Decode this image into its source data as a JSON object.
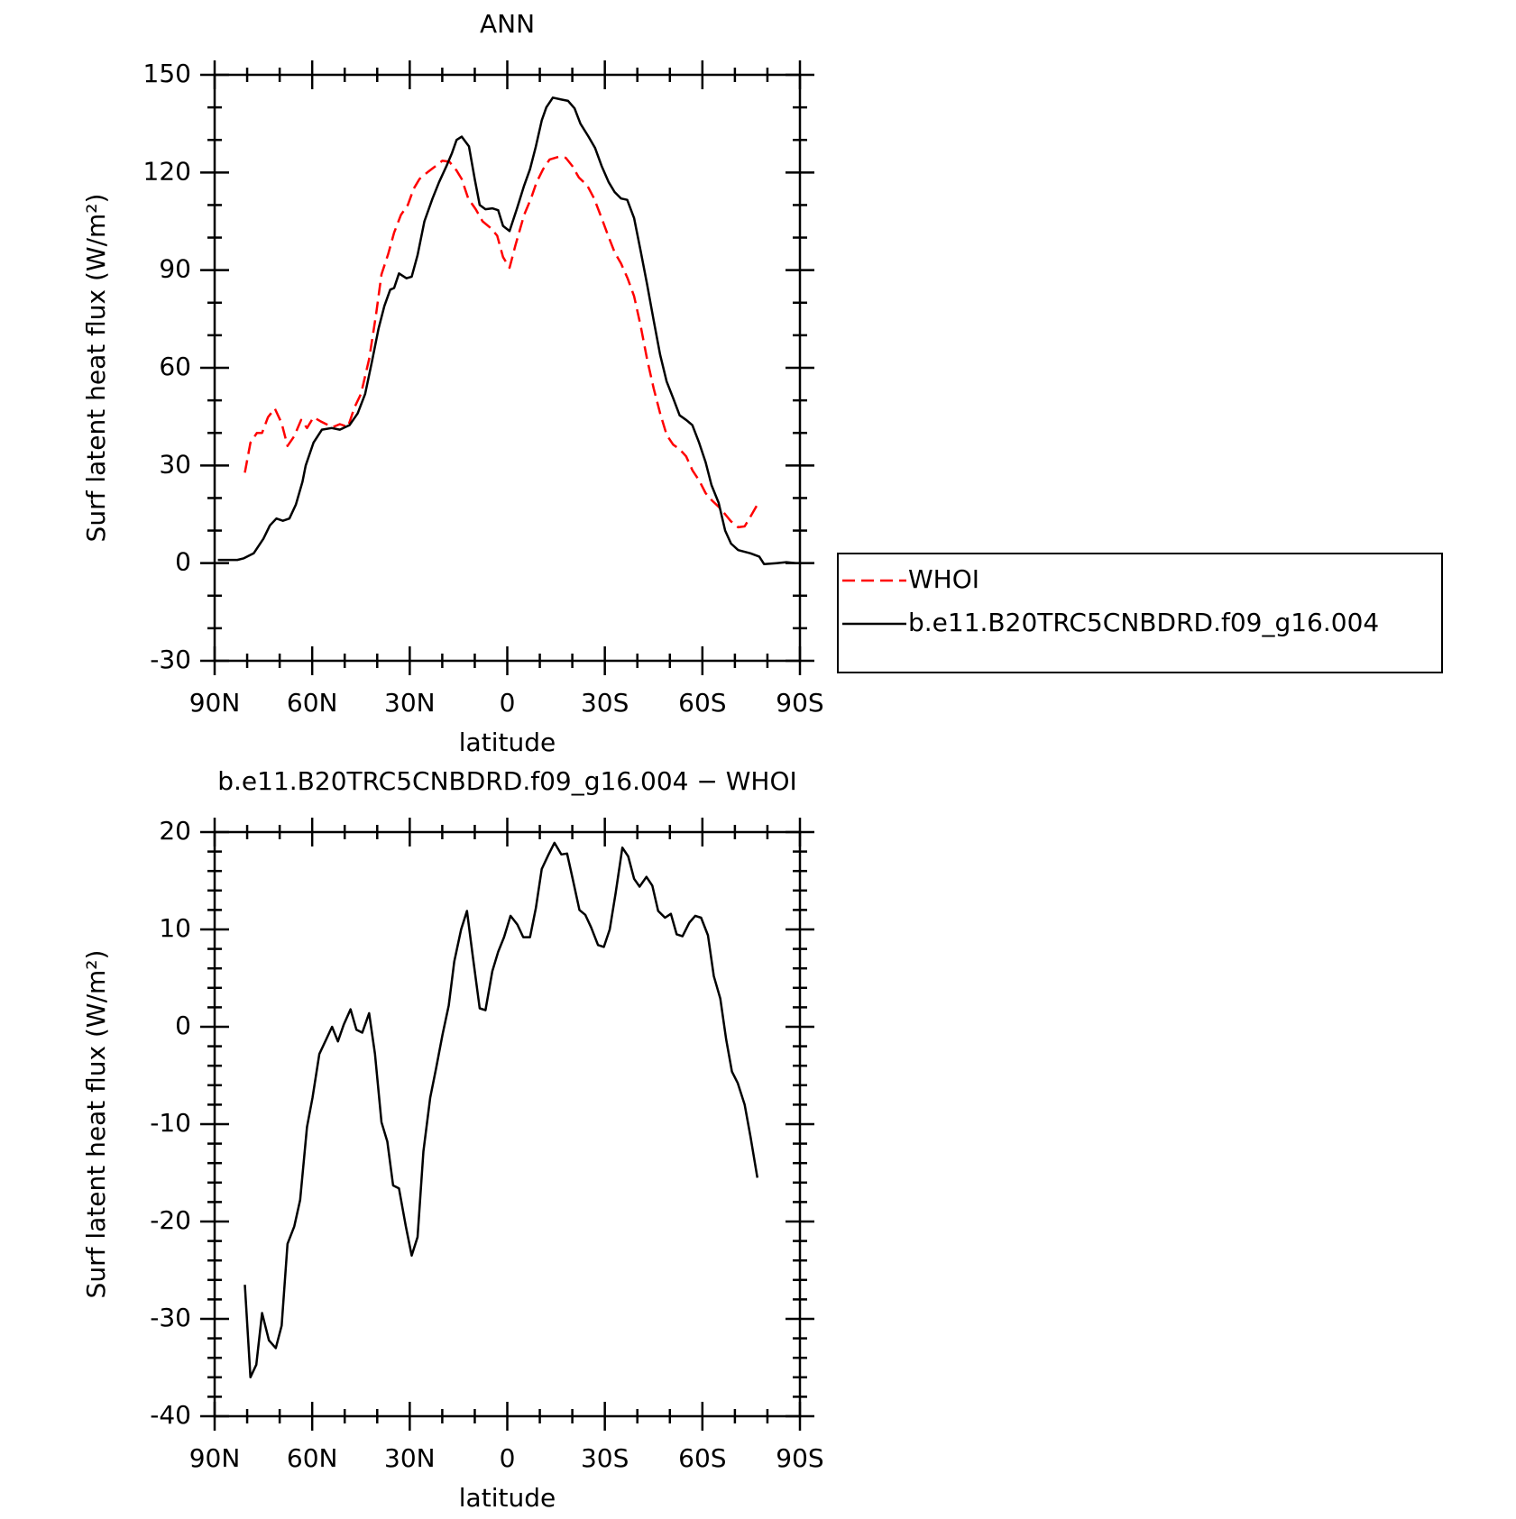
{
  "chart_data": [
    {
      "type": "line",
      "title": "ANN",
      "xlabel": "latitude",
      "ylabel": "Surf latent heat flux (W/m²)",
      "xlim": [
        90,
        -90
      ],
      "xticks": [
        {
          "value": 90,
          "label": "90N"
        },
        {
          "value": 60,
          "label": "60N"
        },
        {
          "value": 30,
          "label": "30N"
        },
        0,
        {
          "value": -30,
          "label": "30S"
        },
        {
          "value": -60,
          "label": "60S"
        },
        {
          "value": -90,
          "label": "90S"
        }
      ],
      "ylim": [
        -30,
        150
      ],
      "yticks": [
        -30,
        0,
        30,
        60,
        90,
        120,
        150
      ],
      "legend": "right",
      "series": [
        {
          "name": "WHOI",
          "color": "#ff0000",
          "dash": true,
          "x": [
            80.7,
            79,
            77,
            75.4,
            73.6,
            71.5,
            69.4,
            67.6,
            65.5,
            63.4,
            61.6,
            59.6,
            57.5,
            55.7,
            53.6,
            51.5,
            49,
            47,
            45,
            42.5,
            40.4,
            38.7,
            36.6,
            34.8,
            32.7,
            30.6,
            28.8,
            27,
            24.6,
            22,
            20,
            17.8,
            15.6,
            14,
            12,
            9.7,
            7.6,
            5.2,
            3.1,
            1.3,
            -0.7,
            -2.5,
            -5.2,
            -7.3,
            -9,
            -11,
            -13,
            -15.7,
            -18,
            -20,
            -22,
            -24.6,
            -26.7,
            -29,
            -31,
            -33,
            -35,
            -37,
            -39,
            -41,
            -43,
            -45,
            -47,
            -49,
            -51,
            -53,
            -55,
            -57,
            -59,
            -61,
            -62.8,
            -65,
            -67,
            -68.8,
            -71,
            -73,
            -74.8,
            -76.9
          ],
          "values": [
            27.8,
            37,
            40,
            40,
            44.8,
            47.5,
            43,
            36,
            39,
            44,
            41.5,
            44.8,
            43.6,
            42.7,
            41.8,
            42.7,
            41.8,
            47.8,
            52,
            62.7,
            76,
            88.7,
            95,
            101.5,
            107,
            110,
            115,
            118,
            120,
            122,
            123.6,
            123.3,
            120.6,
            118,
            112,
            108.7,
            105,
            103,
            100.6,
            94,
            90.7,
            97.6,
            107,
            112,
            117,
            121,
            124,
            124.8,
            124.5,
            122,
            118.5,
            116,
            112,
            106,
            100.6,
            95.5,
            92,
            87.5,
            82,
            73,
            62.7,
            53.7,
            46,
            39.4,
            36.4,
            35,
            32.8,
            28.4,
            25.4,
            21.5,
            19.4,
            17.3,
            15,
            12.8,
            11,
            11.3,
            14.3,
            18
          ]
        },
        {
          "name": "b.e11.B20TRC5CNBDRD.f09_g16.004",
          "color": "#000000",
          "dash": false,
          "x": [
            89,
            83,
            81,
            78,
            75,
            73,
            71,
            69,
            67,
            65,
            63,
            62,
            59.6,
            57,
            54,
            51.5,
            48.5,
            46,
            43.7,
            41.6,
            39.6,
            37.8,
            36,
            34.8,
            33.3,
            31,
            29.4,
            27.6,
            25.5,
            23,
            21,
            18.7,
            17,
            15.6,
            14,
            11.8,
            10,
            8.5,
            6.7,
            4.6,
            2.8,
            1.3,
            -0.7,
            -3,
            -5.2,
            -7,
            -8.8,
            -10.6,
            -12,
            -14,
            -16.6,
            -18.7,
            -20.7,
            -22.5,
            -25,
            -27,
            -29,
            -31.2,
            -33,
            -35,
            -36.9,
            -39,
            -41,
            -43,
            -45,
            -47,
            -49,
            -51,
            -53,
            -55,
            -56.9,
            -59,
            -61,
            -62.8,
            -65,
            -67,
            -68.8,
            -71,
            -74.8,
            -77.5,
            -79,
            -82.8,
            -85.8,
            -88.8
          ],
          "values": [
            1,
            1,
            1.5,
            3,
            7.5,
            11.6,
            13.7,
            13,
            13.7,
            18,
            25,
            30,
            37,
            41,
            41.5,
            41,
            42.4,
            46,
            52,
            62,
            72,
            79,
            84,
            84.5,
            89,
            87.5,
            88,
            94.6,
            105,
            112,
            117,
            122,
            126,
            130,
            131,
            128,
            118,
            110,
            108.7,
            109,
            108.4,
            103.6,
            102,
            109,
            116,
            121,
            128,
            136,
            140,
            143,
            142.4,
            142,
            139.7,
            135,
            131,
            127.5,
            122,
            117,
            114,
            112,
            111.6,
            106,
            96,
            85.7,
            74.6,
            64,
            55.8,
            50.7,
            45.4,
            44,
            42.4,
            37,
            31,
            24,
            18.5,
            10,
            6,
            4,
            3,
            2,
            -0.3,
            0,
            0.3,
            0
          ]
        }
      ]
    },
    {
      "type": "line",
      "title": "b.e11.B20TRC5CNBDRD.f09_g16.004 − WHOI",
      "xlabel": "latitude",
      "ylabel": "Surf latent heat flux (W/m²)",
      "xlim": [
        90,
        -90
      ],
      "xticks": [
        {
          "value": 90,
          "label": "90N"
        },
        {
          "value": 60,
          "label": "60N"
        },
        {
          "value": 30,
          "label": "30N"
        },
        0,
        {
          "value": -30,
          "label": "30S"
        },
        {
          "value": -60,
          "label": "60S"
        },
        {
          "value": -90,
          "label": "90S"
        }
      ],
      "ylim": [
        -40,
        20
      ],
      "yticks": [
        -40,
        -30,
        -20,
        -10,
        0,
        10,
        20
      ],
      "series": [
        {
          "color": "#000000",
          "dash": false,
          "x": [
            80.7,
            79,
            77.2,
            75.4,
            73.3,
            71.2,
            69.4,
            67.6,
            65.5,
            63.7,
            61.6,
            59.9,
            57.8,
            55.7,
            53.9,
            52.1,
            50.3,
            48.2,
            46.4,
            44.6,
            42.5,
            40.7,
            38.7,
            36.9,
            35.1,
            33.3,
            31.2,
            29.4,
            27.6,
            25.8,
            23.7,
            21.9,
            19.9,
            18,
            16.3,
            14.2,
            12.4,
            10.6,
            8.5,
            6.7,
            4.6,
            2.8,
            1,
            -1,
            -3.1,
            -4.9,
            -7,
            -8.8,
            -10.6,
            -12.7,
            -14.5,
            -16.6,
            -18.4,
            -20.1,
            -22.2,
            -24,
            -25.8,
            -27.9,
            -29.7,
            -31.5,
            -33.3,
            -35.4,
            -37.2,
            -39,
            -40.7,
            -42.8,
            -44.6,
            -46.4,
            -48.5,
            -50.3,
            -52.1,
            -53.9,
            -56,
            -57.8,
            -59.6,
            -61.7,
            -63.5,
            -65.5,
            -67.3,
            -69.1,
            -70.9,
            -73,
            -74.8,
            -76.9
          ],
          "values": [
            -26.5,
            -36,
            -34.7,
            -29.4,
            -32.2,
            -33,
            -30.7,
            -22.3,
            -20.5,
            -17.8,
            -10.3,
            -7.3,
            -2.8,
            -1.3,
            0,
            -1.5,
            0.2,
            1.8,
            -0.3,
            -0.6,
            1.4,
            -2.8,
            -9.8,
            -11.8,
            -16.3,
            -16.6,
            -20.5,
            -23.5,
            -21.6,
            -12.8,
            -7.3,
            -4.3,
            -0.8,
            2.2,
            6.7,
            10,
            11.9,
            7.2,
            1.9,
            1.7,
            5.7,
            7.7,
            9.2,
            11.4,
            10.5,
            9.2,
            9.2,
            12.2,
            16.2,
            17.7,
            18.9,
            17.7,
            17.8,
            15.2,
            12,
            11.5,
            10.2,
            8.4,
            8.2,
            10,
            13.7,
            18.4,
            17.5,
            15.2,
            14.4,
            15.4,
            14.5,
            11.9,
            11.2,
            11.6,
            9.5,
            9.3,
            10.7,
            11.4,
            11.2,
            9.4,
            5.2,
            2.9,
            -1.3,
            -4.6,
            -5.8,
            -8,
            -11.3,
            -15.5
          ]
        }
      ]
    }
  ]
}
